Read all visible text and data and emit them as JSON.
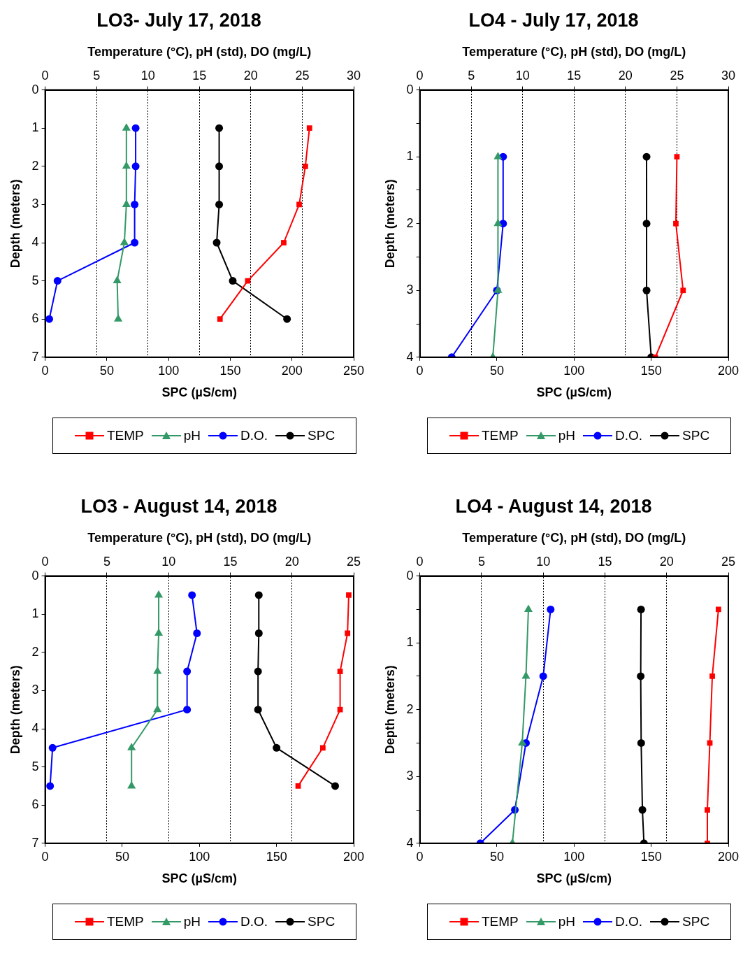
{
  "chart_data": [
    {
      "type": "line",
      "title": "LO3- July 17, 2018",
      "xlabel": "SPC (µS/cm)",
      "x2label": "Temperature (°C), pH (std), DO (mg/L)",
      "ylabel": "Depth (meters)",
      "xlim": [
        0,
        250
      ],
      "xticks": [
        0,
        50,
        100,
        150,
        200,
        250
      ],
      "x2lim": [
        0,
        30
      ],
      "x2ticks": [
        0,
        5,
        10,
        15,
        20,
        25,
        30
      ],
      "ylim": [
        7,
        0
      ],
      "yticks": [
        0,
        1,
        2,
        3,
        4,
        5,
        6,
        7
      ],
      "grid": "x",
      "legend": "bottom",
      "line_style": "solid",
      "series": [
        {
          "name": "TEMP",
          "color": "#ff0000",
          "marker": "square",
          "axis": "x2",
          "x": [
            25.7,
            25.3,
            24.7,
            23.2,
            19.7,
            17.0
          ],
          "values": [
            1,
            2,
            3,
            4,
            5,
            6
          ]
        },
        {
          "name": "pH",
          "color": "#339966",
          "marker": "triangle",
          "axis": "x2",
          "x": [
            7.9,
            7.9,
            7.9,
            7.7,
            7.0,
            7.1
          ],
          "values": [
            1,
            2,
            3,
            4,
            5,
            6
          ]
        },
        {
          "name": "D.O.",
          "color": "#0000ff",
          "marker": "circle",
          "axis": "x2",
          "x": [
            8.8,
            8.8,
            8.7,
            8.7,
            1.2,
            0.4
          ],
          "values": [
            1,
            2,
            3,
            4,
            5,
            6
          ]
        },
        {
          "name": "SPC",
          "color": "#000000",
          "marker": "circle",
          "x": [
            141,
            141,
            141,
            139,
            152,
            196
          ],
          "values": [
            1,
            2,
            3,
            4,
            5,
            6
          ]
        }
      ]
    },
    {
      "type": "line",
      "title": "LO4 - July 17, 2018",
      "xlabel": "SPC (µS/cm)",
      "x2label": "Temperature (°C), pH (std), DO (mg/L)",
      "ylabel": "Depth (meters)",
      "xlim": [
        0,
        200
      ],
      "xticks": [
        0,
        50,
        100,
        150,
        200
      ],
      "x2lim": [
        0,
        30
      ],
      "x2ticks": [
        0,
        5,
        10,
        15,
        20,
        25,
        30
      ],
      "ylim": [
        4,
        0
      ],
      "yticks": [
        0,
        {
          "value": 0.5,
          "label": null
        },
        1,
        {
          "value": 1.5,
          "label": null
        },
        2,
        {
          "value": 2.5,
          "label": null
        },
        3,
        {
          "value": 3.5,
          "label": null
        },
        4
      ],
      "grid": "x",
      "legend": "bottom",
      "line_style": "solid",
      "series": [
        {
          "name": "TEMP",
          "color": "#ff0000",
          "marker": "square",
          "axis": "x2",
          "x": [
            25.0,
            24.9,
            25.6,
            22.9
          ],
          "values": [
            1,
            2,
            3,
            4
          ]
        },
        {
          "name": "pH",
          "color": "#339966",
          "marker": "triangle",
          "axis": "x2",
          "x": [
            7.6,
            7.6,
            7.6,
            7.1
          ],
          "values": [
            1,
            2,
            3,
            4
          ]
        },
        {
          "name": "D.O.",
          "color": "#0000ff",
          "marker": "circle",
          "axis": "x2",
          "x": [
            8.1,
            8.1,
            7.5,
            3.1
          ],
          "values": [
            1,
            2,
            3,
            4
          ]
        },
        {
          "name": "SPC",
          "color": "#000000",
          "marker": "circle",
          "x": [
            147,
            147,
            147,
            150
          ],
          "values": [
            1,
            2,
            3,
            4
          ]
        }
      ]
    },
    {
      "type": "line",
      "title": "LO3 - August 14, 2018",
      "xlabel": "SPC (µS/cm)",
      "x2label": "Temperature (°C), pH (std), DO (mg/L)",
      "ylabel": "Depth (meters)",
      "xlim": [
        0,
        200
      ],
      "xticks": [
        0,
        50,
        100,
        150,
        200
      ],
      "x2lim": [
        0,
        25
      ],
      "x2ticks": [
        0,
        5,
        10,
        15,
        20,
        25
      ],
      "ylim": [
        7,
        0
      ],
      "yticks": [
        0,
        1,
        2,
        3,
        4,
        5,
        6,
        7
      ],
      "grid": "x",
      "legend": "bottom",
      "line_style": "solid",
      "series": [
        {
          "name": "TEMP",
          "color": "#ff0000",
          "marker": "square",
          "axis": "x2",
          "x": [
            24.6,
            24.5,
            23.9,
            23.9,
            22.5,
            20.5
          ],
          "values": [
            0.5,
            1.5,
            2.5,
            3.5,
            4.5,
            5.5
          ]
        },
        {
          "name": "pH",
          "color": "#339966",
          "marker": "triangle",
          "axis": "x2",
          "x": [
            9.2,
            9.2,
            9.1,
            9.1,
            7.0,
            7.0
          ],
          "values": [
            0.5,
            1.5,
            2.5,
            3.5,
            4.5,
            5.5
          ]
        },
        {
          "name": "D.O.",
          "color": "#0000ff",
          "marker": "circle",
          "axis": "x2",
          "x": [
            11.9,
            12.3,
            11.5,
            11.5,
            0.6,
            0.4
          ],
          "values": [
            0.5,
            1.5,
            2.5,
            3.5,
            4.5,
            5.5
          ]
        },
        {
          "name": "SPC",
          "color": "#000000",
          "marker": "circle",
          "x": [
            138.5,
            138.5,
            138,
            138,
            150,
            188
          ],
          "values": [
            0.5,
            1.5,
            2.5,
            3.5,
            4.5,
            5.5
          ]
        }
      ]
    },
    {
      "type": "line",
      "title": "LO4 - August 14, 2018",
      "xlabel": "SPC (µS/cm)",
      "x2label": "Temperature (°C), pH (std), DO (mg/L)",
      "ylabel": "Depth (meters)",
      "xlim": [
        0,
        200
      ],
      "xticks": [
        0,
        50,
        100,
        150,
        200
      ],
      "x2lim": [
        0,
        25
      ],
      "x2ticks": [
        0,
        5,
        10,
        15,
        20,
        25
      ],
      "ylim": [
        4,
        0
      ],
      "yticks": [
        0,
        {
          "value": 0.5,
          "label": null
        },
        1,
        {
          "value": 1.5,
          "label": null
        },
        2,
        {
          "value": 2.5,
          "label": null
        },
        3,
        {
          "value": 3.5,
          "label": null
        },
        4
      ],
      "grid": "x",
      "legend": "bottom",
      "line_style": "solid",
      "series": [
        {
          "name": "TEMP",
          "color": "#ff0000",
          "marker": "square",
          "axis": "x2",
          "x": [
            24.2,
            23.7,
            23.5,
            23.3,
            23.3
          ],
          "values": [
            0.5,
            1.5,
            2.5,
            3.5,
            4
          ]
        },
        {
          "name": "pH",
          "color": "#339966",
          "marker": "triangle",
          "axis": "x2",
          "x": [
            8.8,
            8.6,
            8.3,
            null,
            7.5
          ],
          "values": [
            0.5,
            1.5,
            2.5,
            null,
            4
          ]
        },
        {
          "name": "D.O.",
          "color": "#0000ff",
          "marker": "circle",
          "axis": "x2",
          "x": [
            10.6,
            10.0,
            8.6,
            7.7,
            4.9
          ],
          "values": [
            0.5,
            1.5,
            2.5,
            3.5,
            4
          ]
        },
        {
          "name": "SPC",
          "color": "#000000",
          "marker": "circle",
          "x": [
            143.4,
            143.2,
            143.5,
            144.3,
            145.3
          ],
          "values": [
            0.5,
            1.5,
            2.5,
            3.5,
            4
          ]
        }
      ]
    }
  ]
}
